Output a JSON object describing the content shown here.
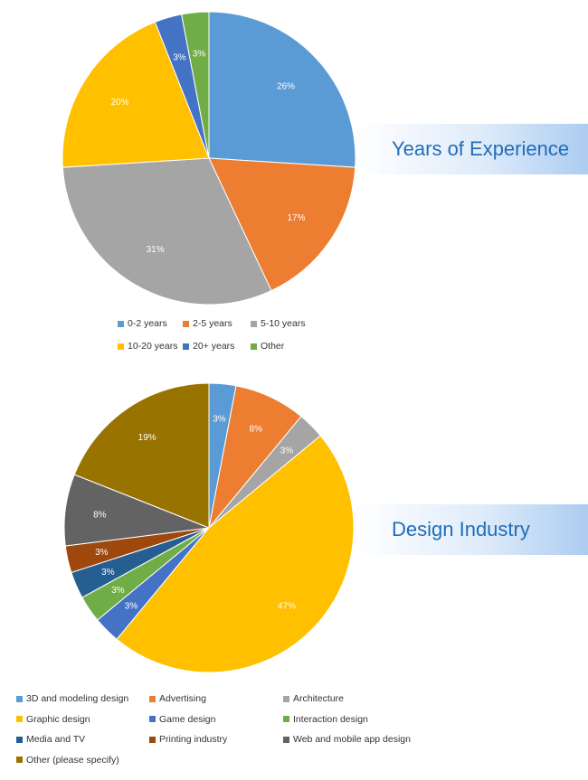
{
  "chart_data": [
    {
      "type": "pie",
      "title": "Years of Experience",
      "slices": [
        {
          "label": "0-2 years",
          "value": 26,
          "display": "26%",
          "color": "#5b9bd5"
        },
        {
          "label": "2-5 years",
          "value": 17,
          "display": "17%",
          "color": "#ed7d31"
        },
        {
          "label": "5-10 years",
          "value": 31,
          "display": "31%",
          "color": "#a5a5a5"
        },
        {
          "label": "10-20 years",
          "value": 20,
          "display": "20%",
          "color": "#ffc000"
        },
        {
          "label": "20+ years",
          "value": 3,
          "display": "3%",
          "color": "#4472c4"
        },
        {
          "label": "Other",
          "value": 3,
          "display": "3%",
          "color": "#70ad47"
        }
      ],
      "legend_position": "bottom"
    },
    {
      "type": "pie",
      "title": "Design Industry",
      "slices": [
        {
          "label": "3D and modeling design",
          "value": 3,
          "display": "3%",
          "color": "#5b9bd5"
        },
        {
          "label": "Advertising",
          "value": 8,
          "display": "8%",
          "color": "#ed7d31"
        },
        {
          "label": "Architecture",
          "value": 3,
          "display": "3%",
          "color": "#a5a5a5"
        },
        {
          "label": "Graphic design",
          "value": 47,
          "display": "47%",
          "color": "#ffc000"
        },
        {
          "label": "Game design",
          "value": 3,
          "display": "3%",
          "color": "#4472c4"
        },
        {
          "label": "Interaction design",
          "value": 3,
          "display": "3%",
          "color": "#70ad47"
        },
        {
          "label": "Media and TV",
          "value": 3,
          "display": "3%",
          "color": "#255e91"
        },
        {
          "label": "Printing industry",
          "value": 3,
          "display": "3%",
          "color": "#9e480e"
        },
        {
          "label": "Web and mobile app design",
          "value": 8,
          "display": "8%",
          "color": "#636363"
        },
        {
          "label": "Other (please specify)",
          "value": 19,
          "display": "19%",
          "color": "#997300"
        }
      ],
      "legend_position": "bottom"
    }
  ]
}
